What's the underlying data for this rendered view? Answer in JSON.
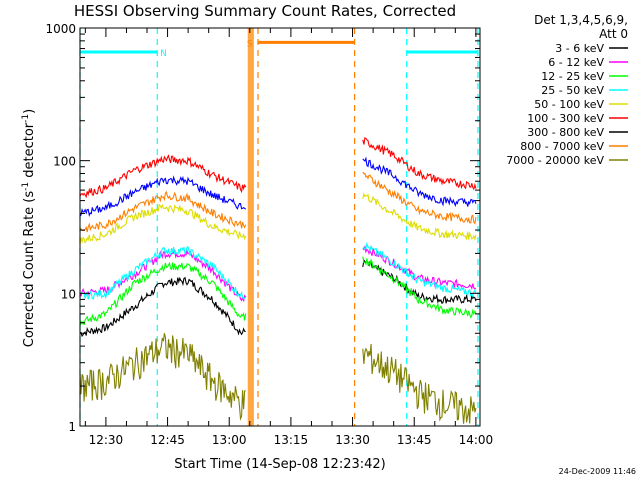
{
  "chart_data": {
    "type": "line",
    "title": "HESSI Observing Summary Count Rates, Corrected",
    "xlabel": "Start Time (14-Sep-08 12:23:42)",
    "ylabel": "Corrected Count Rate (s",
    "ylabel_sup1": "-1",
    "ylabel_mid": " detector",
    "ylabel_sup2": "-1",
    "ylabel_end": ")",
    "y_scale": "log",
    "ylim": [
      1,
      1000
    ],
    "xlim_minutes": [
      "12:23:42",
      "14:01:00"
    ],
    "x_ticks": [
      "12:30",
      "12:45",
      "13:00",
      "13:15",
      "13:30",
      "13:45",
      "14:00"
    ],
    "y_ticks": [
      "1",
      "10",
      "100",
      "1000"
    ],
    "legend_header": [
      "Det 1,3,4,5,6,9,",
      "Att 0"
    ],
    "legend_position": "right",
    "footer_date": "24-Dec-2009 11:46",
    "flags": [
      {
        "label": "N",
        "color": "#00ffff",
        "level": 660,
        "bars": [
          [
            "12:23:42",
            "12:42:30"
          ],
          [
            "13:43:10",
            "14:00:30"
          ]
        ],
        "vlines": [
          "12:23:42",
          "12:42:30",
          "13:43:10",
          "14:00:30"
        ],
        "label_at": "12:44:00"
      },
      {
        "label": "S",
        "color": "#ff7f00",
        "level": 780,
        "bars": [
          [
            "13:07:00",
            "13:30:30"
          ]
        ],
        "vlines": [
          "13:07:00",
          "13:30:30"
        ],
        "label_at": "13:05:00"
      }
    ],
    "saa_fill_times": [
      "13:04:30",
      "13:06:00"
    ],
    "series": [
      {
        "name": "3 - 6 keV",
        "color": "#000000",
        "points": [
          [
            "12:23:42",
            5
          ],
          [
            "12:30",
            5.5
          ],
          [
            "12:37",
            8
          ],
          [
            "12:44",
            12
          ],
          [
            "12:50",
            12.5
          ],
          [
            "12:56",
            9
          ],
          [
            "13:03",
            5
          ],
          [
            "13:33",
            17
          ],
          [
            "13:40",
            13
          ],
          [
            "13:46",
            9.5
          ],
          [
            "13:52",
            9
          ],
          [
            "14:00",
            9
          ]
        ]
      },
      {
        "name": "6 - 12 keV",
        "color": "#ff00ff",
        "points": [
          [
            "12:23:42",
            10
          ],
          [
            "12:30",
            10.5
          ],
          [
            "12:37",
            14
          ],
          [
            "12:44",
            20
          ],
          [
            "12:50",
            20
          ],
          [
            "12:56",
            15
          ],
          [
            "13:03",
            9
          ],
          [
            "13:33",
            22
          ],
          [
            "13:40",
            17
          ],
          [
            "13:46",
            13
          ],
          [
            "13:52",
            12
          ],
          [
            "14:00",
            11.5
          ]
        ]
      },
      {
        "name": "12 - 25 keV",
        "color": "#00ff00",
        "points": [
          [
            "12:23:42",
            6
          ],
          [
            "12:30",
            7
          ],
          [
            "12:37",
            12
          ],
          [
            "12:44",
            16
          ],
          [
            "12:50",
            16
          ],
          [
            "12:56",
            12
          ],
          [
            "13:03",
            6.5
          ],
          [
            "13:33",
            18
          ],
          [
            "13:40",
            13
          ],
          [
            "13:46",
            9
          ],
          [
            "13:52",
            7.5
          ],
          [
            "14:00",
            7
          ]
        ]
      },
      {
        "name": "25 - 50 keV",
        "color": "#00ffff",
        "points": [
          [
            "12:23:42",
            9.5
          ],
          [
            "12:30",
            10
          ],
          [
            "12:37",
            15
          ],
          [
            "12:44",
            21
          ],
          [
            "12:50",
            21
          ],
          [
            "12:56",
            16
          ],
          [
            "13:03",
            9.5
          ],
          [
            "13:33",
            23
          ],
          [
            "13:40",
            17
          ],
          [
            "13:46",
            12.5
          ],
          [
            "13:52",
            11
          ],
          [
            "14:00",
            10
          ]
        ]
      },
      {
        "name": "50 - 100 keV",
        "color": "#dddd00",
        "points": [
          [
            "12:23:42",
            25
          ],
          [
            "12:30",
            28
          ],
          [
            "12:37",
            38
          ],
          [
            "12:44",
            45
          ],
          [
            "12:50",
            42
          ],
          [
            "12:56",
            32
          ],
          [
            "13:03",
            27
          ],
          [
            "13:33",
            55
          ],
          [
            "13:40",
            40
          ],
          [
            "13:46",
            31
          ],
          [
            "13:52",
            28
          ],
          [
            "14:00",
            27
          ]
        ]
      },
      {
        "name": "100 - 300 keV",
        "color": "#ff0000",
        "points": [
          [
            "12:23:42",
            56
          ],
          [
            "12:30",
            62
          ],
          [
            "12:37",
            85
          ],
          [
            "12:44",
            103
          ],
          [
            "12:50",
            100
          ],
          [
            "12:56",
            78
          ],
          [
            "13:03",
            62
          ],
          [
            "13:33",
            140
          ],
          [
            "13:40",
            110
          ],
          [
            "13:46",
            80
          ],
          [
            "13:52",
            70
          ],
          [
            "14:00",
            65
          ]
        ]
      },
      {
        "name": "300 - 800 keV",
        "color": "#000000",
        "points": []
      },
      {
        "name": "800 - 7000 keV",
        "color": "#ff7f00",
        "points": [
          [
            "12:23:42",
            30
          ],
          [
            "12:30",
            33
          ],
          [
            "12:37",
            44
          ],
          [
            "12:44",
            55
          ],
          [
            "12:50",
            52
          ],
          [
            "12:56",
            40
          ],
          [
            "13:03",
            33
          ],
          [
            "13:33",
            78
          ],
          [
            "13:40",
            56
          ],
          [
            "13:46",
            42
          ],
          [
            "13:52",
            38
          ],
          [
            "14:00",
            36
          ]
        ]
      },
      {
        "name": "7000 - 20000 keV",
        "color": "#808000",
        "points": [
          [
            "12:23:42",
            2
          ],
          [
            "12:30",
            2.2
          ],
          [
            "12:37",
            3
          ],
          [
            "12:44",
            4
          ],
          [
            "12:50",
            3.5
          ],
          [
            "12:56",
            2.2
          ],
          [
            "13:03",
            1.5
          ],
          [
            "13:33",
            3.5
          ],
          [
            "13:40",
            2.6
          ],
          [
            "13:46",
            1.8
          ],
          [
            "13:52",
            1.5
          ],
          [
            "14:00",
            1.3
          ]
        ]
      },
      {
        "name": "blue-band",
        "color": "#0000ff",
        "legend": false,
        "points": [
          [
            "12:23:42",
            40
          ],
          [
            "12:30",
            44
          ],
          [
            "12:37",
            58
          ],
          [
            "12:44",
            72
          ],
          [
            "12:50",
            70
          ],
          [
            "12:56",
            55
          ],
          [
            "13:03",
            45
          ],
          [
            "13:33",
            100
          ],
          [
            "13:40",
            77
          ],
          [
            "13:46",
            57
          ],
          [
            "13:52",
            50
          ],
          [
            "14:00",
            48
          ]
        ]
      }
    ]
  }
}
